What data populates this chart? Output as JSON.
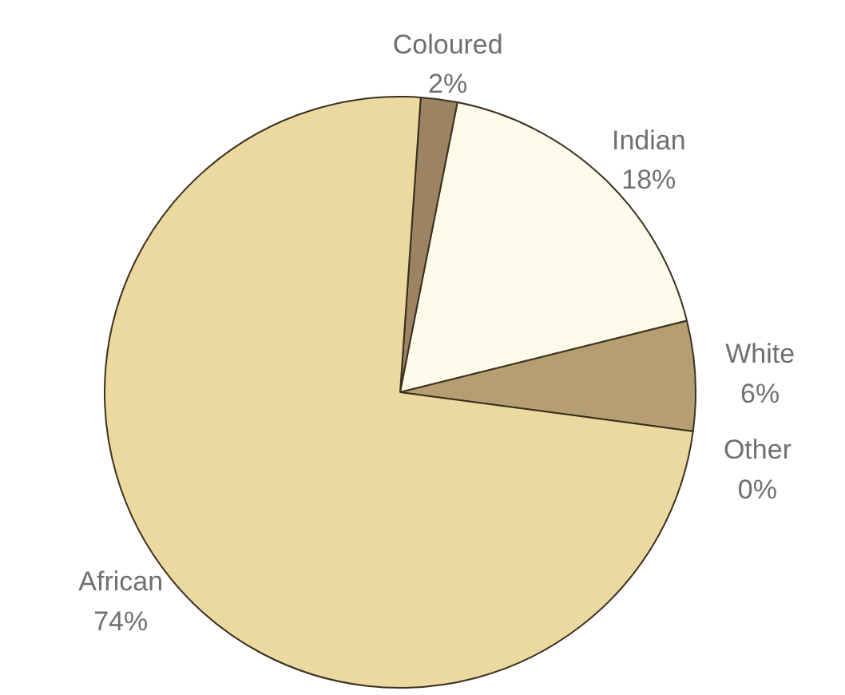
{
  "chart_data": {
    "type": "pie",
    "categories": [
      "Coloured",
      "Indian",
      "White",
      "Other",
      "African"
    ],
    "values": [
      2,
      18,
      6,
      0,
      74
    ],
    "colors": [
      "#9c8462",
      "#fffbea",
      "#b59e72",
      "#6b5a3e",
      "#ecd9a0"
    ],
    "value_labels": [
      "2%",
      "18%",
      "6%",
      "0%",
      "74%"
    ]
  }
}
